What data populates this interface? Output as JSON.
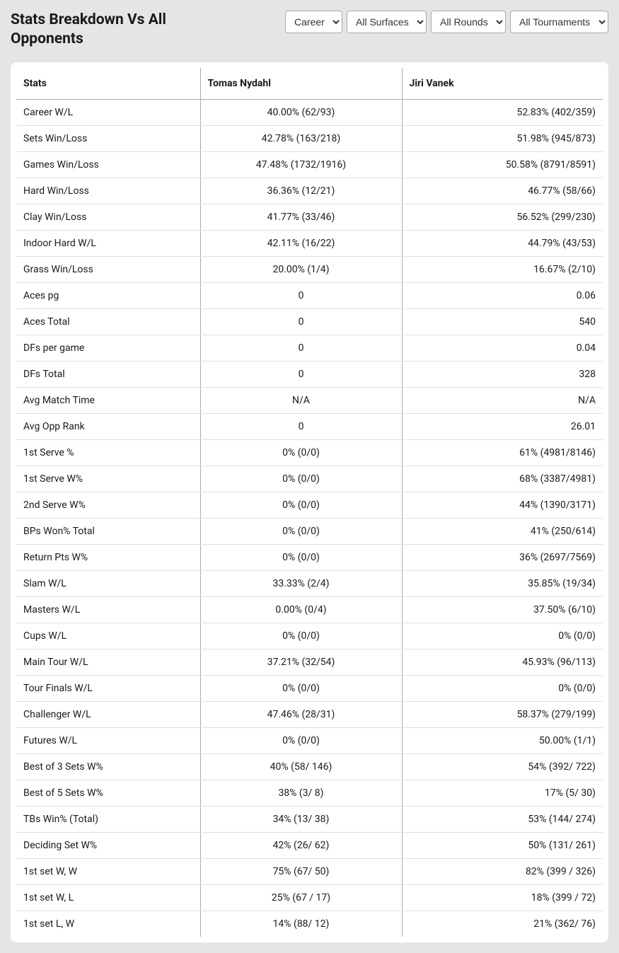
{
  "title": "Stats Breakdown Vs All Opponents",
  "filters": {
    "period": {
      "selected": "Career",
      "options": [
        "Career"
      ]
    },
    "surface": {
      "selected": "All Surfaces",
      "options": [
        "All Surfaces"
      ]
    },
    "rounds": {
      "selected": "All Rounds",
      "options": [
        "All Rounds"
      ]
    },
    "tournaments": {
      "selected": "All Tournaments",
      "options": [
        "All Tournaments"
      ]
    }
  },
  "table": {
    "headers": [
      "Stats",
      "Tomas Nydahl",
      "Jiri Vanek"
    ],
    "rows": [
      {
        "stat": "Career W/L",
        "p1": "40.00% (62/93)",
        "p2": "52.83% (402/359)"
      },
      {
        "stat": "Sets Win/Loss",
        "p1": "42.78% (163/218)",
        "p2": "51.98% (945/873)"
      },
      {
        "stat": "Games Win/Loss",
        "p1": "47.48% (1732/1916)",
        "p2": "50.58% (8791/8591)"
      },
      {
        "stat": "Hard Win/Loss",
        "p1": "36.36% (12/21)",
        "p2": "46.77% (58/66)"
      },
      {
        "stat": "Clay Win/Loss",
        "p1": "41.77% (33/46)",
        "p2": "56.52% (299/230)"
      },
      {
        "stat": "Indoor Hard W/L",
        "p1": "42.11% (16/22)",
        "p2": "44.79% (43/53)"
      },
      {
        "stat": "Grass Win/Loss",
        "p1": "20.00% (1/4)",
        "p2": "16.67% (2/10)"
      },
      {
        "stat": "Aces pg",
        "p1": "0",
        "p2": "0.06"
      },
      {
        "stat": "Aces Total",
        "p1": "0",
        "p2": "540"
      },
      {
        "stat": "DFs per game",
        "p1": "0",
        "p2": "0.04"
      },
      {
        "stat": "DFs Total",
        "p1": "0",
        "p2": "328"
      },
      {
        "stat": "Avg Match Time",
        "p1": "N/A",
        "p2": "N/A"
      },
      {
        "stat": "Avg Opp Rank",
        "p1": "0",
        "p2": "26.01"
      },
      {
        "stat": "1st Serve %",
        "p1": "0% (0/0)",
        "p2": "61% (4981/8146)"
      },
      {
        "stat": "1st Serve W%",
        "p1": "0% (0/0)",
        "p2": "68% (3387/4981)"
      },
      {
        "stat": "2nd Serve W%",
        "p1": "0% (0/0)",
        "p2": "44% (1390/3171)"
      },
      {
        "stat": "BPs Won% Total",
        "p1": "0% (0/0)",
        "p2": "41% (250/614)"
      },
      {
        "stat": "Return Pts W%",
        "p1": "0% (0/0)",
        "p2": "36% (2697/7569)"
      },
      {
        "stat": "Slam W/L",
        "p1": "33.33% (2/4)",
        "p2": "35.85% (19/34)"
      },
      {
        "stat": "Masters W/L",
        "p1": "0.00% (0/4)",
        "p2": "37.50% (6/10)"
      },
      {
        "stat": "Cups W/L",
        "p1": "0% (0/0)",
        "p2": "0% (0/0)"
      },
      {
        "stat": "Main Tour W/L",
        "p1": "37.21% (32/54)",
        "p2": "45.93% (96/113)"
      },
      {
        "stat": "Tour Finals W/L",
        "p1": "0% (0/0)",
        "p2": "0% (0/0)"
      },
      {
        "stat": "Challenger W/L",
        "p1": "47.46% (28/31)",
        "p2": "58.37% (279/199)"
      },
      {
        "stat": "Futures W/L",
        "p1": "0% (0/0)",
        "p2": "50.00% (1/1)"
      },
      {
        "stat": "Best of 3 Sets W%",
        "p1": "40% (58/ 146)",
        "p2": "54% (392/ 722)"
      },
      {
        "stat": "Best of 5 Sets W%",
        "p1": "38% (3/ 8)",
        "p2": "17% (5/ 30)"
      },
      {
        "stat": "TBs Win% (Total)",
        "p1": "34% (13/ 38)",
        "p2": "53% (144/ 274)"
      },
      {
        "stat": "Deciding Set W%",
        "p1": "42% (26/ 62)",
        "p2": "50% (131/ 261)"
      },
      {
        "stat": "1st set W, W",
        "p1": "75% (67/ 50)",
        "p2": "82% (399 / 326)"
      },
      {
        "stat": "1st set W, L",
        "p1": "25% (67 / 17)",
        "p2": "18% (399 / 72)"
      },
      {
        "stat": "1st set L, W",
        "p1": "14% (88/ 12)",
        "p2": "21% (362/ 76)"
      }
    ]
  }
}
